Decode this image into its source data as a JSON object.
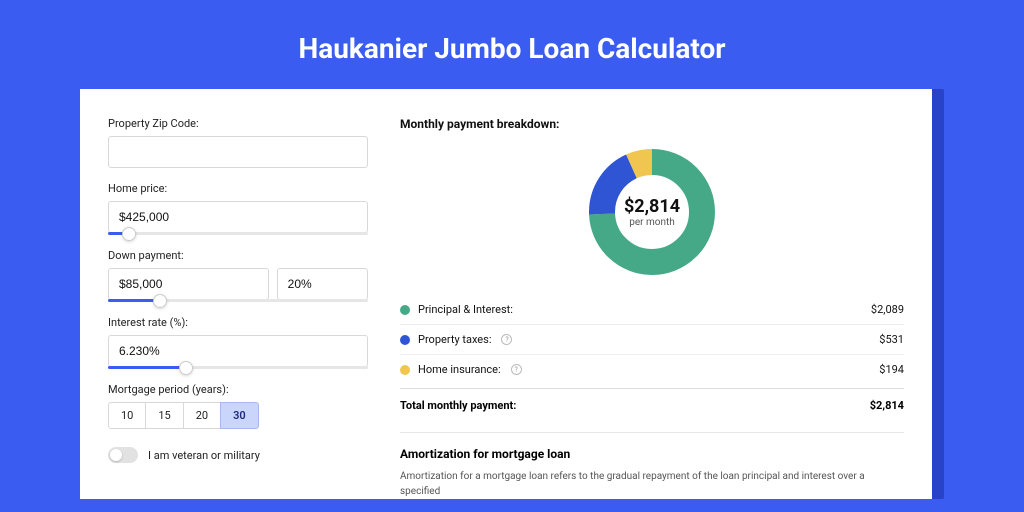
{
  "colors": {
    "page_bg": "#3a5cf0",
    "shadow_bg": "#2842c8",
    "card_bg": "#ffffff",
    "accent": "#3a5cf0",
    "slice_principal": "#45a987",
    "slice_taxes": "#2f55d4",
    "slice_insurance": "#f0c651"
  },
  "title": "Haukanier Jumbo Loan Calculator",
  "form": {
    "zip": {
      "label": "Property Zip Code:",
      "value": ""
    },
    "home_price": {
      "label": "Home price:",
      "value": "$425,000",
      "slider_pct": 8
    },
    "down_payment": {
      "label": "Down payment:",
      "value": "$85,000",
      "pct": "20%",
      "slider_pct": 20
    },
    "interest_rate": {
      "label": "Interest rate (%):",
      "value": "6.230%",
      "slider_pct": 30
    },
    "mortgage_period": {
      "label": "Mortgage period (years):",
      "options": [
        "10",
        "15",
        "20",
        "30"
      ],
      "selected": "30"
    },
    "veteran": {
      "label": "I am veteran or military",
      "checked": false
    }
  },
  "breakdown": {
    "title": "Monthly payment breakdown:",
    "center_amount": "$2,814",
    "center_sub": "per month",
    "items": [
      {
        "label": "Principal & Interest:",
        "value": "$2,089",
        "color": "#45a987",
        "num": 2089,
        "info": false
      },
      {
        "label": "Property taxes:",
        "value": "$531",
        "color": "#2f55d4",
        "num": 531,
        "info": true
      },
      {
        "label": "Home insurance:",
        "value": "$194",
        "color": "#f0c651",
        "num": 194,
        "info": true
      }
    ],
    "total_label": "Total monthly payment:",
    "total_value": "$2,814",
    "total_num": 2814
  },
  "amortization": {
    "title": "Amortization for mortgage loan",
    "body": "Amortization for a mortgage loan refers to the gradual repayment of the loan principal and interest over a specified"
  },
  "donut": {
    "radius": 50,
    "stroke": 26
  }
}
